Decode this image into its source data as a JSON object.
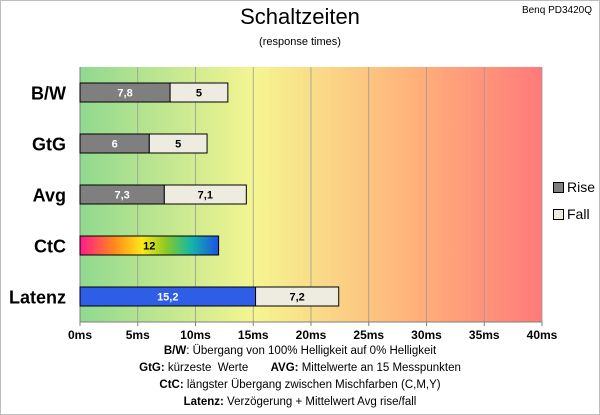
{
  "header": {
    "title": "Schaltzeiten",
    "subtitle": "(response times)",
    "monitor": "Benq PD3420Q"
  },
  "legend": {
    "rise_label": "Rise",
    "fall_label": "Fall"
  },
  "colors": {
    "rise": "#7f7f7f",
    "fall": "#eeece1",
    "latenz_rise": "#2e5de6",
    "background_gradient": [
      "#8fd98f",
      "#f5f590",
      "#ffb27a",
      "#ff7a7a"
    ]
  },
  "chart_data": {
    "type": "bar",
    "orientation": "horizontal",
    "stacked": true,
    "categories": [
      "B/W",
      "GtG",
      "Avg",
      "CtC",
      "Latenz"
    ],
    "series": [
      {
        "name": "Rise",
        "values": [
          7.8,
          6,
          7.3,
          12,
          15.2
        ]
      },
      {
        "name": "Fall",
        "values": [
          5,
          5,
          7.1,
          null,
          7.2
        ]
      }
    ],
    "value_labels": {
      "rise": [
        "7,8",
        "6",
        "7,3",
        "12",
        "15,2"
      ],
      "fall": [
        "5",
        "5",
        "7,1",
        "",
        "7,2"
      ]
    },
    "special_fills": {
      "CtC": "rainbow"
    },
    "xlim": [
      0,
      40
    ],
    "xticks": [
      "0ms",
      "5ms",
      "10ms",
      "15ms",
      "20ms",
      "25ms",
      "30ms",
      "35ms",
      "40ms"
    ],
    "xtick_values": [
      0,
      5,
      10,
      15,
      20,
      25,
      30,
      35,
      40
    ],
    "grid": true,
    "legend_position": "right"
  },
  "footnotes": {
    "line1_bold": "B/W",
    "line1_text": ":  Übergang von 100% Helligkeit auf 0% Helligkeit",
    "line2_bold_a": "GtG:",
    "line2_text_a": " kürzeste  Werte       ",
    "line2_bold_b": "AVG:",
    "line2_text_b": " Mittelwerte  an 15 Messpunkten",
    "line3_bold": "CtC:",
    "line3_text": " längster Übergang  zwischen Mischfarben (C,M,Y)",
    "line4_bold": "Latenz:",
    "line4_text": " Verzögerung  + Mittelwert  Avg rise/fall"
  }
}
